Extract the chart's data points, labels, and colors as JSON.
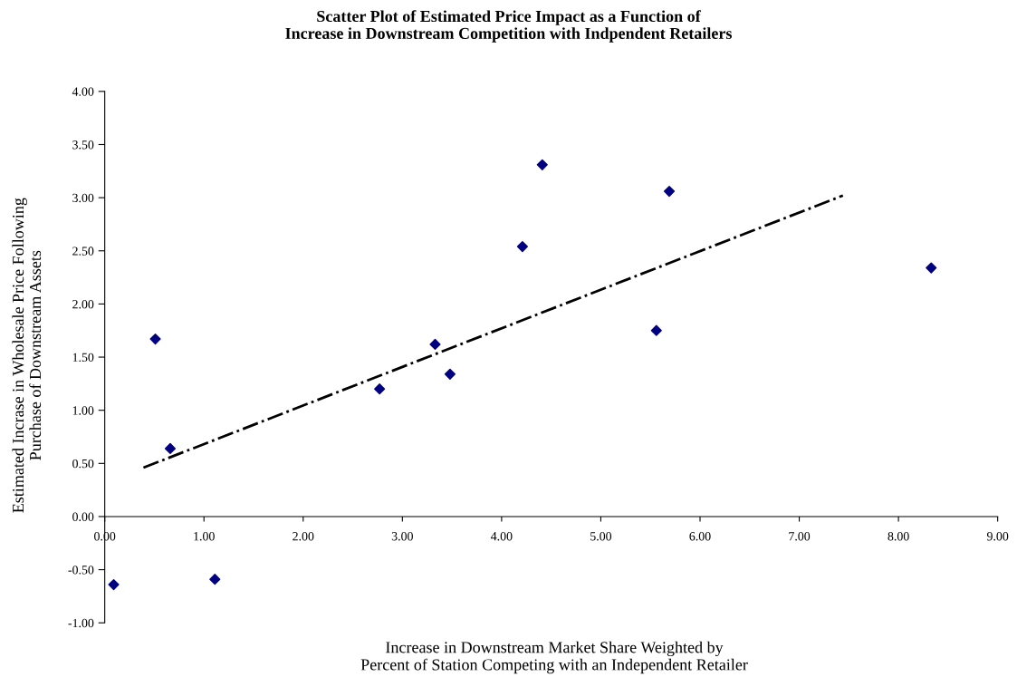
{
  "chart_data": {
    "type": "scatter",
    "title": "Scatter Plot of Estimated Price Impact as a Function of\nIncrease in Downstream Competition with Indpendent Retailers",
    "xlabel": "Increase in Downstream Market Share Weighted by\nPercent of Station Competing with an Independent Retailer",
    "ylabel": "Estimated Incrase in Wholesale Price Following\nPurchase of Downstream Assets",
    "series": [
      {
        "color": "#000080",
        "marker": "diamond",
        "x": [
          0.09,
          0.51,
          0.66,
          1.11,
          2.77,
          3.33,
          3.48,
          4.21,
          4.41,
          5.56,
          5.69,
          8.33
        ],
        "values": [
          -0.64,
          1.67,
          0.64,
          -0.59,
          1.2,
          1.62,
          1.34,
          2.54,
          3.31,
          1.75,
          3.06,
          2.34
        ]
      },
      {
        "type": "line",
        "color": "#000000",
        "line_style": "dashdot",
        "marker": "none",
        "x": [
          0.39,
          7.44
        ],
        "values": [
          0.46,
          3.02
        ]
      }
    ],
    "xlim": [
      0,
      9
    ],
    "xticks": [
      {
        "value": 0,
        "label": "0.00"
      },
      {
        "value": 1,
        "label": "1.00"
      },
      {
        "value": 2,
        "label": "2.00"
      },
      {
        "value": 3,
        "label": "3.00"
      },
      {
        "value": 4,
        "label": "4.00"
      },
      {
        "value": 5,
        "label": "5.00"
      },
      {
        "value": 6,
        "label": "6.00"
      },
      {
        "value": 7,
        "label": "7.00"
      },
      {
        "value": 8,
        "label": "8.00"
      },
      {
        "value": 9,
        "label": "9.00"
      }
    ],
    "ylim": [
      -1,
      4
    ],
    "yticks": [
      {
        "value": -1,
        "label": "-1.00"
      },
      {
        "value": -0.5,
        "label": "-0.50"
      },
      {
        "value": 0,
        "label": "0.00"
      },
      {
        "value": 0.5,
        "label": "0.50"
      },
      {
        "value": 1,
        "label": "1.00"
      },
      {
        "value": 1.5,
        "label": "1.50"
      },
      {
        "value": 2,
        "label": "2.00"
      },
      {
        "value": 2.5,
        "label": "2.50"
      },
      {
        "value": 3,
        "label": "3.00"
      },
      {
        "value": 3.5,
        "label": "3.50"
      },
      {
        "value": 4,
        "label": "4.00"
      }
    ],
    "grid": false
  }
}
